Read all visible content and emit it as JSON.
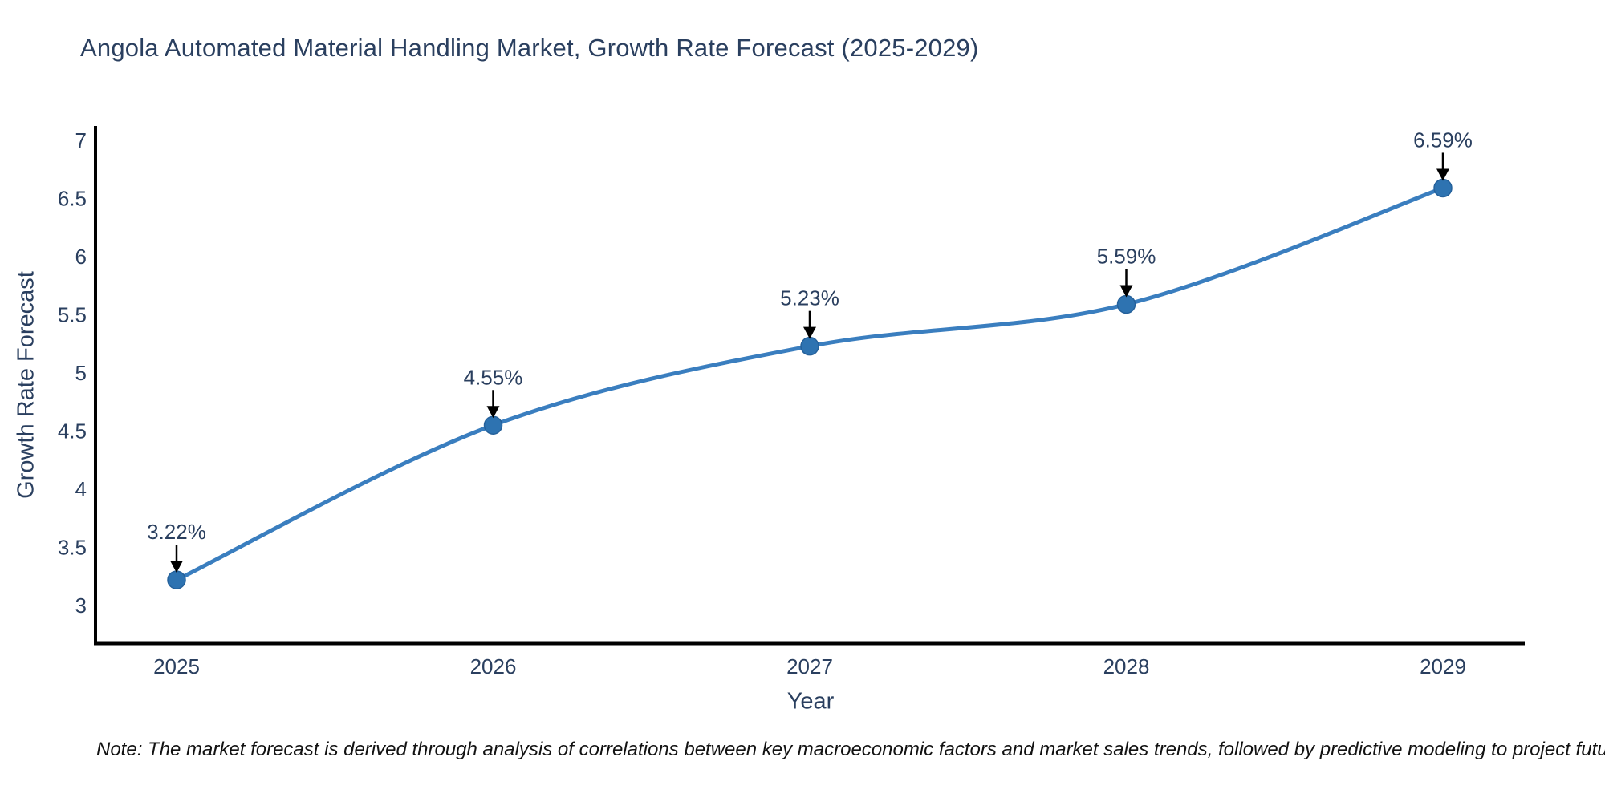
{
  "title": "Angola Automated Material Handling Market, Growth Rate Forecast (2025-2029)",
  "note": "Note: The market forecast is derived through analysis of correlations between key macroeconomic factors and market sales trends, followed by predictive modeling to project future sales",
  "chart_data": {
    "type": "line",
    "title": "Angola Automated Material Handling Market, Growth Rate Forecast (2025-2029)",
    "xlabel": "Year",
    "ylabel": "Growth Rate Forecast",
    "x": [
      2025,
      2026,
      2027,
      2028,
      2029
    ],
    "values": [
      3.22,
      4.55,
      5.23,
      5.59,
      6.59
    ],
    "point_labels": [
      "3.22%",
      "4.55%",
      "5.23%",
      "5.59%",
      "6.59%"
    ],
    "xticks": [
      "2025",
      "2026",
      "2027",
      "2028",
      "2029"
    ],
    "yticks": [
      3,
      3.5,
      4,
      4.5,
      5,
      5.5,
      6,
      6.5,
      7
    ],
    "ylim": [
      2.69,
      7.12
    ],
    "line_shape": "spline",
    "grid": false,
    "legend_position": "none",
    "colors": {
      "line": "#3a7ebf",
      "marker": "#2e73b1",
      "marker_edge": "#25619b",
      "arrow": "#000000",
      "axis_line": "#000000",
      "text": "#2a3f5f"
    }
  }
}
